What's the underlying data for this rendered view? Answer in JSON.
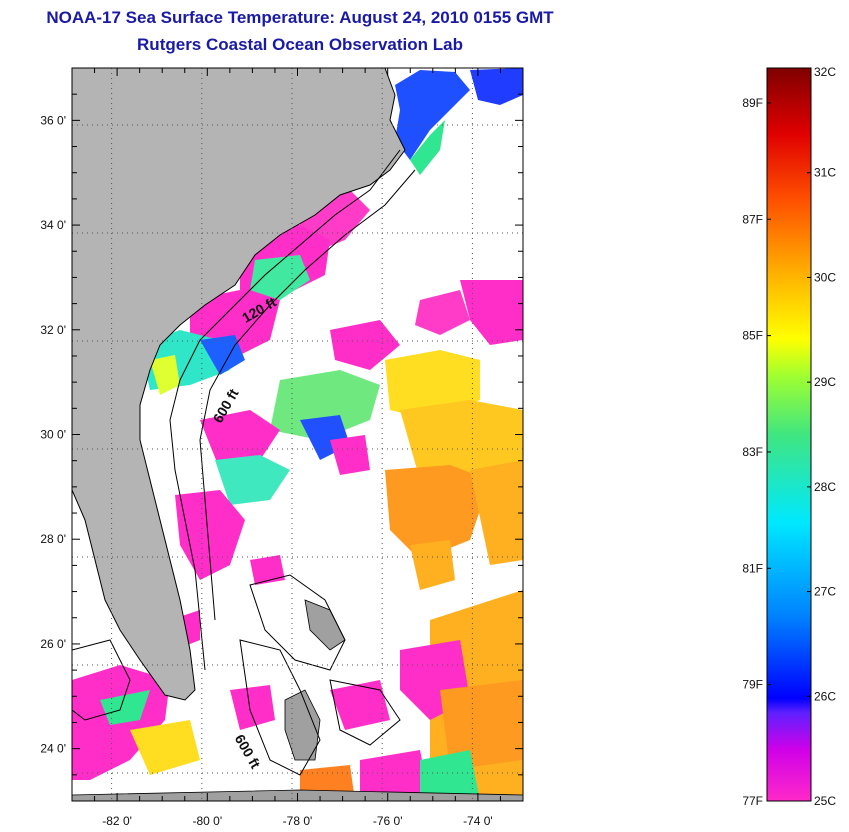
{
  "header": {
    "title": "NOAA-17 Sea Surface Temperature:  August 24, 2010 0155 GMT",
    "subtitle": "Rutgers Coastal Ocean Observation Lab"
  },
  "map": {
    "lon_range": [
      -83,
      -73
    ],
    "lat_range": [
      23,
      37
    ],
    "lon_ticks": [
      {
        "value": -82,
        "label": "-82 0'"
      },
      {
        "value": -80,
        "label": "-80 0'"
      },
      {
        "value": -78,
        "label": "-78 0'"
      },
      {
        "value": -76,
        "label": "-76 0'"
      },
      {
        "value": -74,
        "label": "-74 0'"
      }
    ],
    "lat_ticks": [
      {
        "value": 36,
        "label": "36 0'"
      },
      {
        "value": 34,
        "label": "34 0'"
      },
      {
        "value": 32,
        "label": "32 0'"
      },
      {
        "value": 30,
        "label": "30 0'"
      },
      {
        "value": 28,
        "label": "28 0'"
      },
      {
        "value": 26,
        "label": "26 0'"
      },
      {
        "value": 24,
        "label": "24 0'"
      }
    ],
    "contour_labels": [
      {
        "text": "120 ft",
        "lon": -78.8,
        "lat": 32.3,
        "rotate": -30
      },
      {
        "text": "600 ft",
        "lon": -79.5,
        "lat": 30.5,
        "rotate": -60
      },
      {
        "text": "600 ft",
        "lon": -79.2,
        "lat": 23.9,
        "rotate": 60
      }
    ],
    "land_color": "#b4b4b4",
    "grid": "dotted"
  },
  "colorbar": {
    "celsius_labels": [
      "32C",
      "31C",
      "30C",
      "29C",
      "28C",
      "27C",
      "26C",
      "25C"
    ],
    "fahrenheit_labels": [
      "89F",
      "87F",
      "85F",
      "83F",
      "81F",
      "79F",
      "77F"
    ],
    "colors": [
      "#ff29c8",
      "#b000ff",
      "#2020ff",
      "#0080ff",
      "#00e6ff",
      "#30e680",
      "#a0ff30",
      "#ffff00",
      "#ffb000",
      "#ff5000",
      "#e00000",
      "#800000"
    ]
  }
}
